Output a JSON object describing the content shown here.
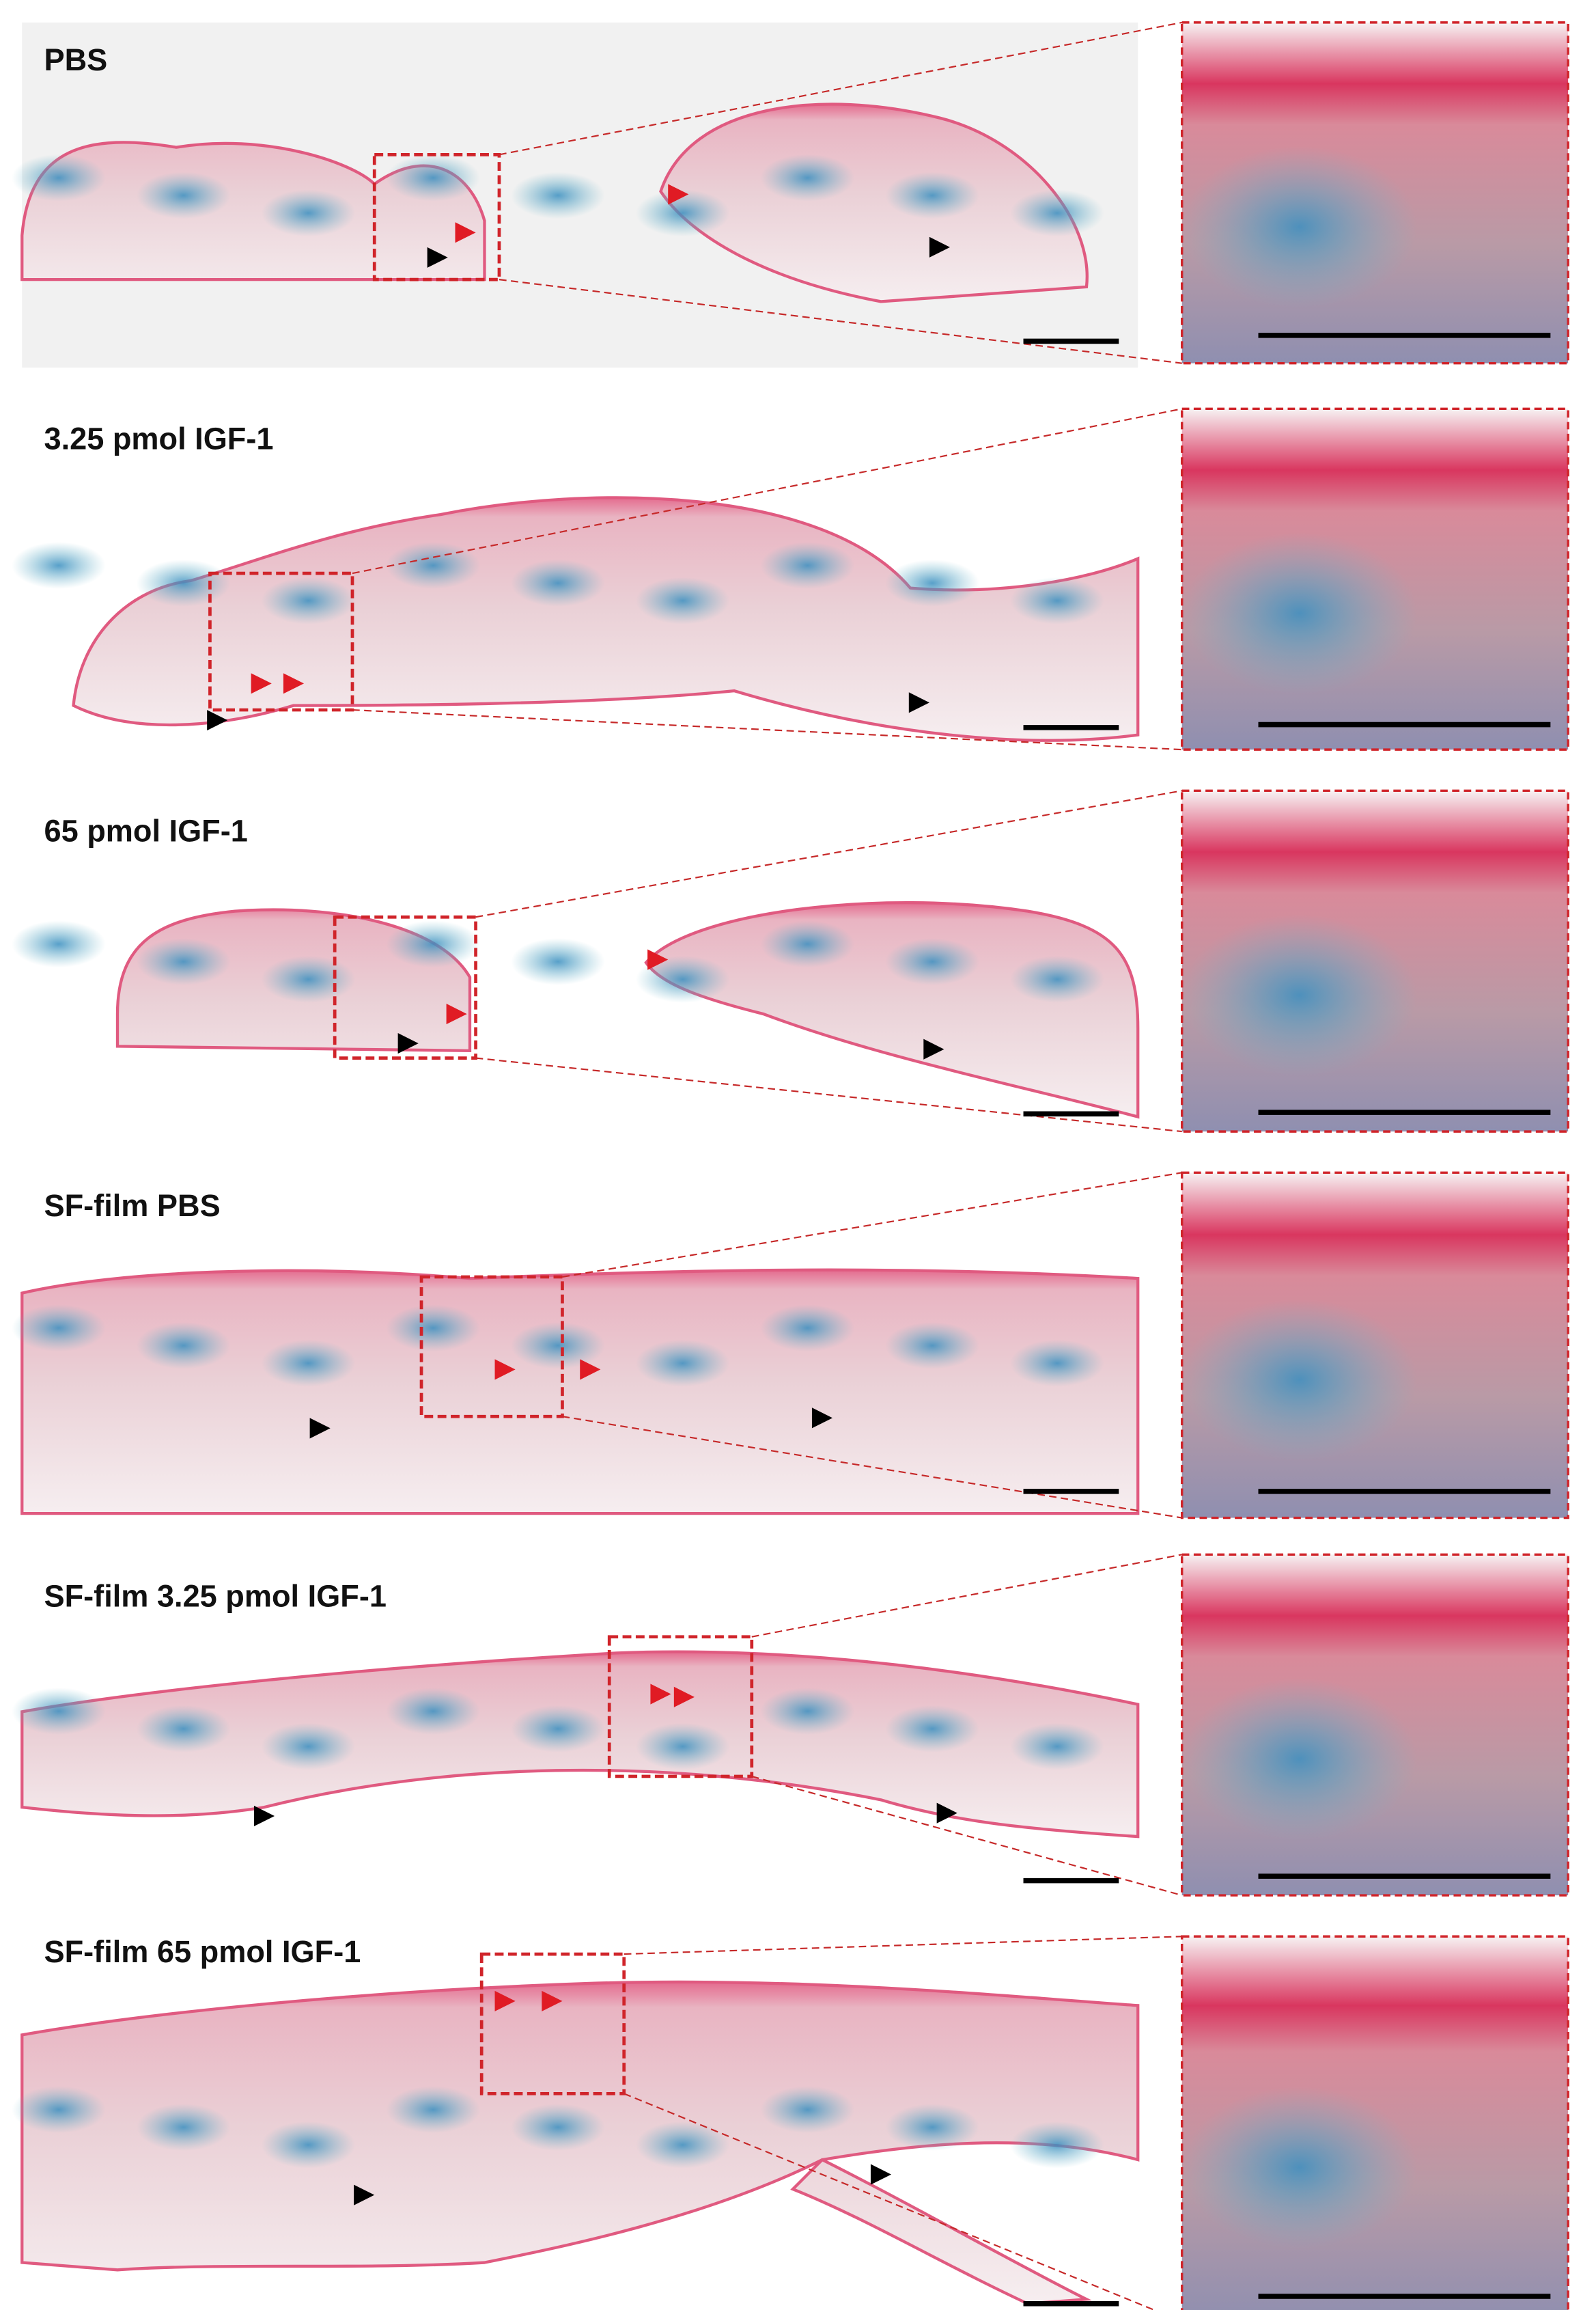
{
  "panels": [
    {
      "label": "PBS"
    },
    {
      "label": "3.25 pmol IGF-1"
    },
    {
      "label": "65 pmol IGF-1"
    },
    {
      "label": "SF-film PBS"
    },
    {
      "label": "SF-film 3.25 pmol IGF-1"
    },
    {
      "label": "SF-film 65 pmol IGF-1"
    }
  ]
}
